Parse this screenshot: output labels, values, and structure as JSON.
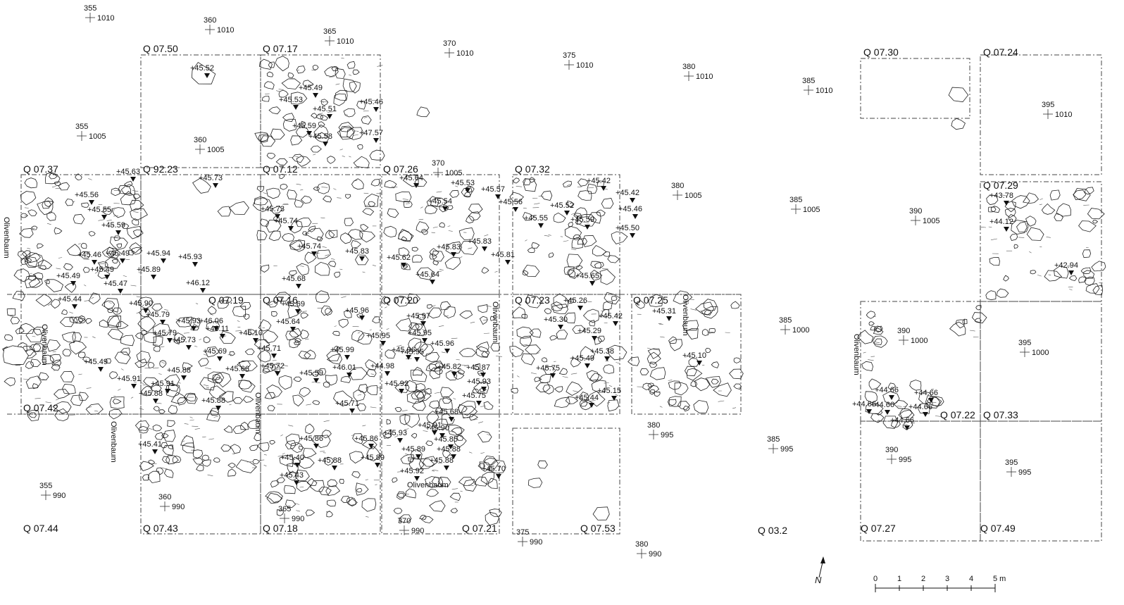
{
  "squares": [
    {
      "id": "Q 07.50"
    },
    {
      "id": "Q 07.17"
    },
    {
      "id": "Q 07.30"
    },
    {
      "id": "Q 07.24"
    },
    {
      "id": "Q 07.37"
    },
    {
      "id": "Q 92.23"
    },
    {
      "id": "Q 07.12"
    },
    {
      "id": "Q 07.26"
    },
    {
      "id": "Q 07.32"
    },
    {
      "id": "Q 07.29"
    },
    {
      "id": "Q 07.19"
    },
    {
      "id": "Q 07.16"
    },
    {
      "id": "Q 07.20"
    },
    {
      "id": "Q 07.23"
    },
    {
      "id": "Q 07.25"
    },
    {
      "id": "Q 07.42"
    },
    {
      "id": "Q 07.22"
    },
    {
      "id": "Q 07.33"
    },
    {
      "id": "Q 07.44"
    },
    {
      "id": "Q 07.43"
    },
    {
      "id": "Q 07.18"
    },
    {
      "id": "Q 07.21"
    },
    {
      "id": "Q 07.53"
    },
    {
      "id": "Q 03.2"
    },
    {
      "id": "Q 07.27"
    },
    {
      "id": "Q 07.49"
    }
  ],
  "grid_points": [
    {
      "e": "355",
      "n": "1010"
    },
    {
      "e": "360",
      "n": "1010"
    },
    {
      "e": "365",
      "n": "1010"
    },
    {
      "e": "370",
      "n": "1010"
    },
    {
      "e": "375",
      "n": "1010"
    },
    {
      "e": "380",
      "n": "1010"
    },
    {
      "e": "385",
      "n": "1010"
    },
    {
      "e": "395",
      "n": "1010"
    },
    {
      "e": "355",
      "n": "1005"
    },
    {
      "e": "360",
      "n": "1005"
    },
    {
      "e": "370",
      "n": "1005"
    },
    {
      "e": "380",
      "n": "1005"
    },
    {
      "e": "385",
      "n": "1005"
    },
    {
      "e": "390",
      "n": "1005"
    },
    {
      "e": "385",
      "n": "1000"
    },
    {
      "e": "390",
      "n": "1000"
    },
    {
      "e": "395",
      "n": "1000"
    },
    {
      "e": "380",
      "n": "995"
    },
    {
      "e": "385",
      "n": "995"
    },
    {
      "e": "390",
      "n": "995"
    },
    {
      "e": "395",
      "n": "995"
    },
    {
      "e": "355",
      "n": "990"
    },
    {
      "e": "360",
      "n": "990"
    },
    {
      "e": "365",
      "n": "990"
    },
    {
      "e": "370",
      "n": "990"
    },
    {
      "e": "375",
      "n": "990"
    },
    {
      "e": "380",
      "n": "990"
    }
  ],
  "elevations": [
    "+45.52",
    "+45.49",
    "+45.53",
    "+45.46",
    "+45.51",
    "+45.59",
    "+45.58",
    "+47.57",
    "+45.63",
    "+45.56",
    "+45.55",
    "+45.59",
    "+45.46",
    "+45.49",
    "+45.49",
    "+45.49",
    "+45.47",
    "+45.44",
    "+45.73",
    "+45.94",
    "+45.93",
    "+45.89",
    "+46.12",
    "+45.73",
    "+45.74",
    "+45.74",
    "+45.83",
    "+45.68",
    "+45.64",
    "+45.53",
    "+45.57",
    "+45.54",
    "+45.83",
    "+45.83",
    "+45.81",
    "+45.62",
    "+45.64",
    "+45.42",
    "+45.42",
    "+45.56",
    "+45.52",
    "+45.46",
    "+45.55",
    "+45.59",
    "+45.50",
    "+45.65",
    "+43.78",
    "+44.12",
    "+42.94",
    "+45.90",
    "+45.79",
    "+45.93",
    "+46.06",
    "+46.11",
    "+46.10",
    "+45.79",
    "+45.73",
    "+45.69",
    "+45.66",
    "+45.88",
    "+45.91",
    "+45.88",
    "+45.88",
    "+45.41",
    "+45.49",
    "+45.91",
    "+45.69",
    "+45.64",
    "+45.96",
    "+45.71",
    "+45.72",
    "+45.99",
    "+45.59",
    "+46.01",
    "+45.71",
    "+45.97",
    "+45.95",
    "+45.95",
    "+45.96",
    "+45.95",
    "+45.96",
    "+44.98",
    "+45.92",
    "+45.82",
    "+45.87",
    "+45.93",
    "+45.75",
    "+45.26",
    "+45.30",
    "+45.42",
    "+45.29",
    "+45.38",
    "+45.75",
    "+45.49",
    "+45.15",
    "+45.44",
    "+45.31",
    "+45.10",
    "+45.86",
    "+45.86",
    "+45.40",
    "+45.88",
    "+45.89",
    "+45.43",
    "+45.93",
    "+45.91",
    "+45.68",
    "+45.90",
    "+45.85",
    "+45.89",
    "+45.88",
    "+45.88",
    "+45.92",
    "+45.70",
    "+44.66",
    "+44.66",
    "+44.66",
    "+44.66",
    "+44.66",
    "+44.66"
  ],
  "tree_label": "Olivenbaum",
  "north_label": "N",
  "scale_bar": {
    "ticks": [
      "0",
      "1",
      "2",
      "3",
      "4",
      "5 m"
    ]
  }
}
